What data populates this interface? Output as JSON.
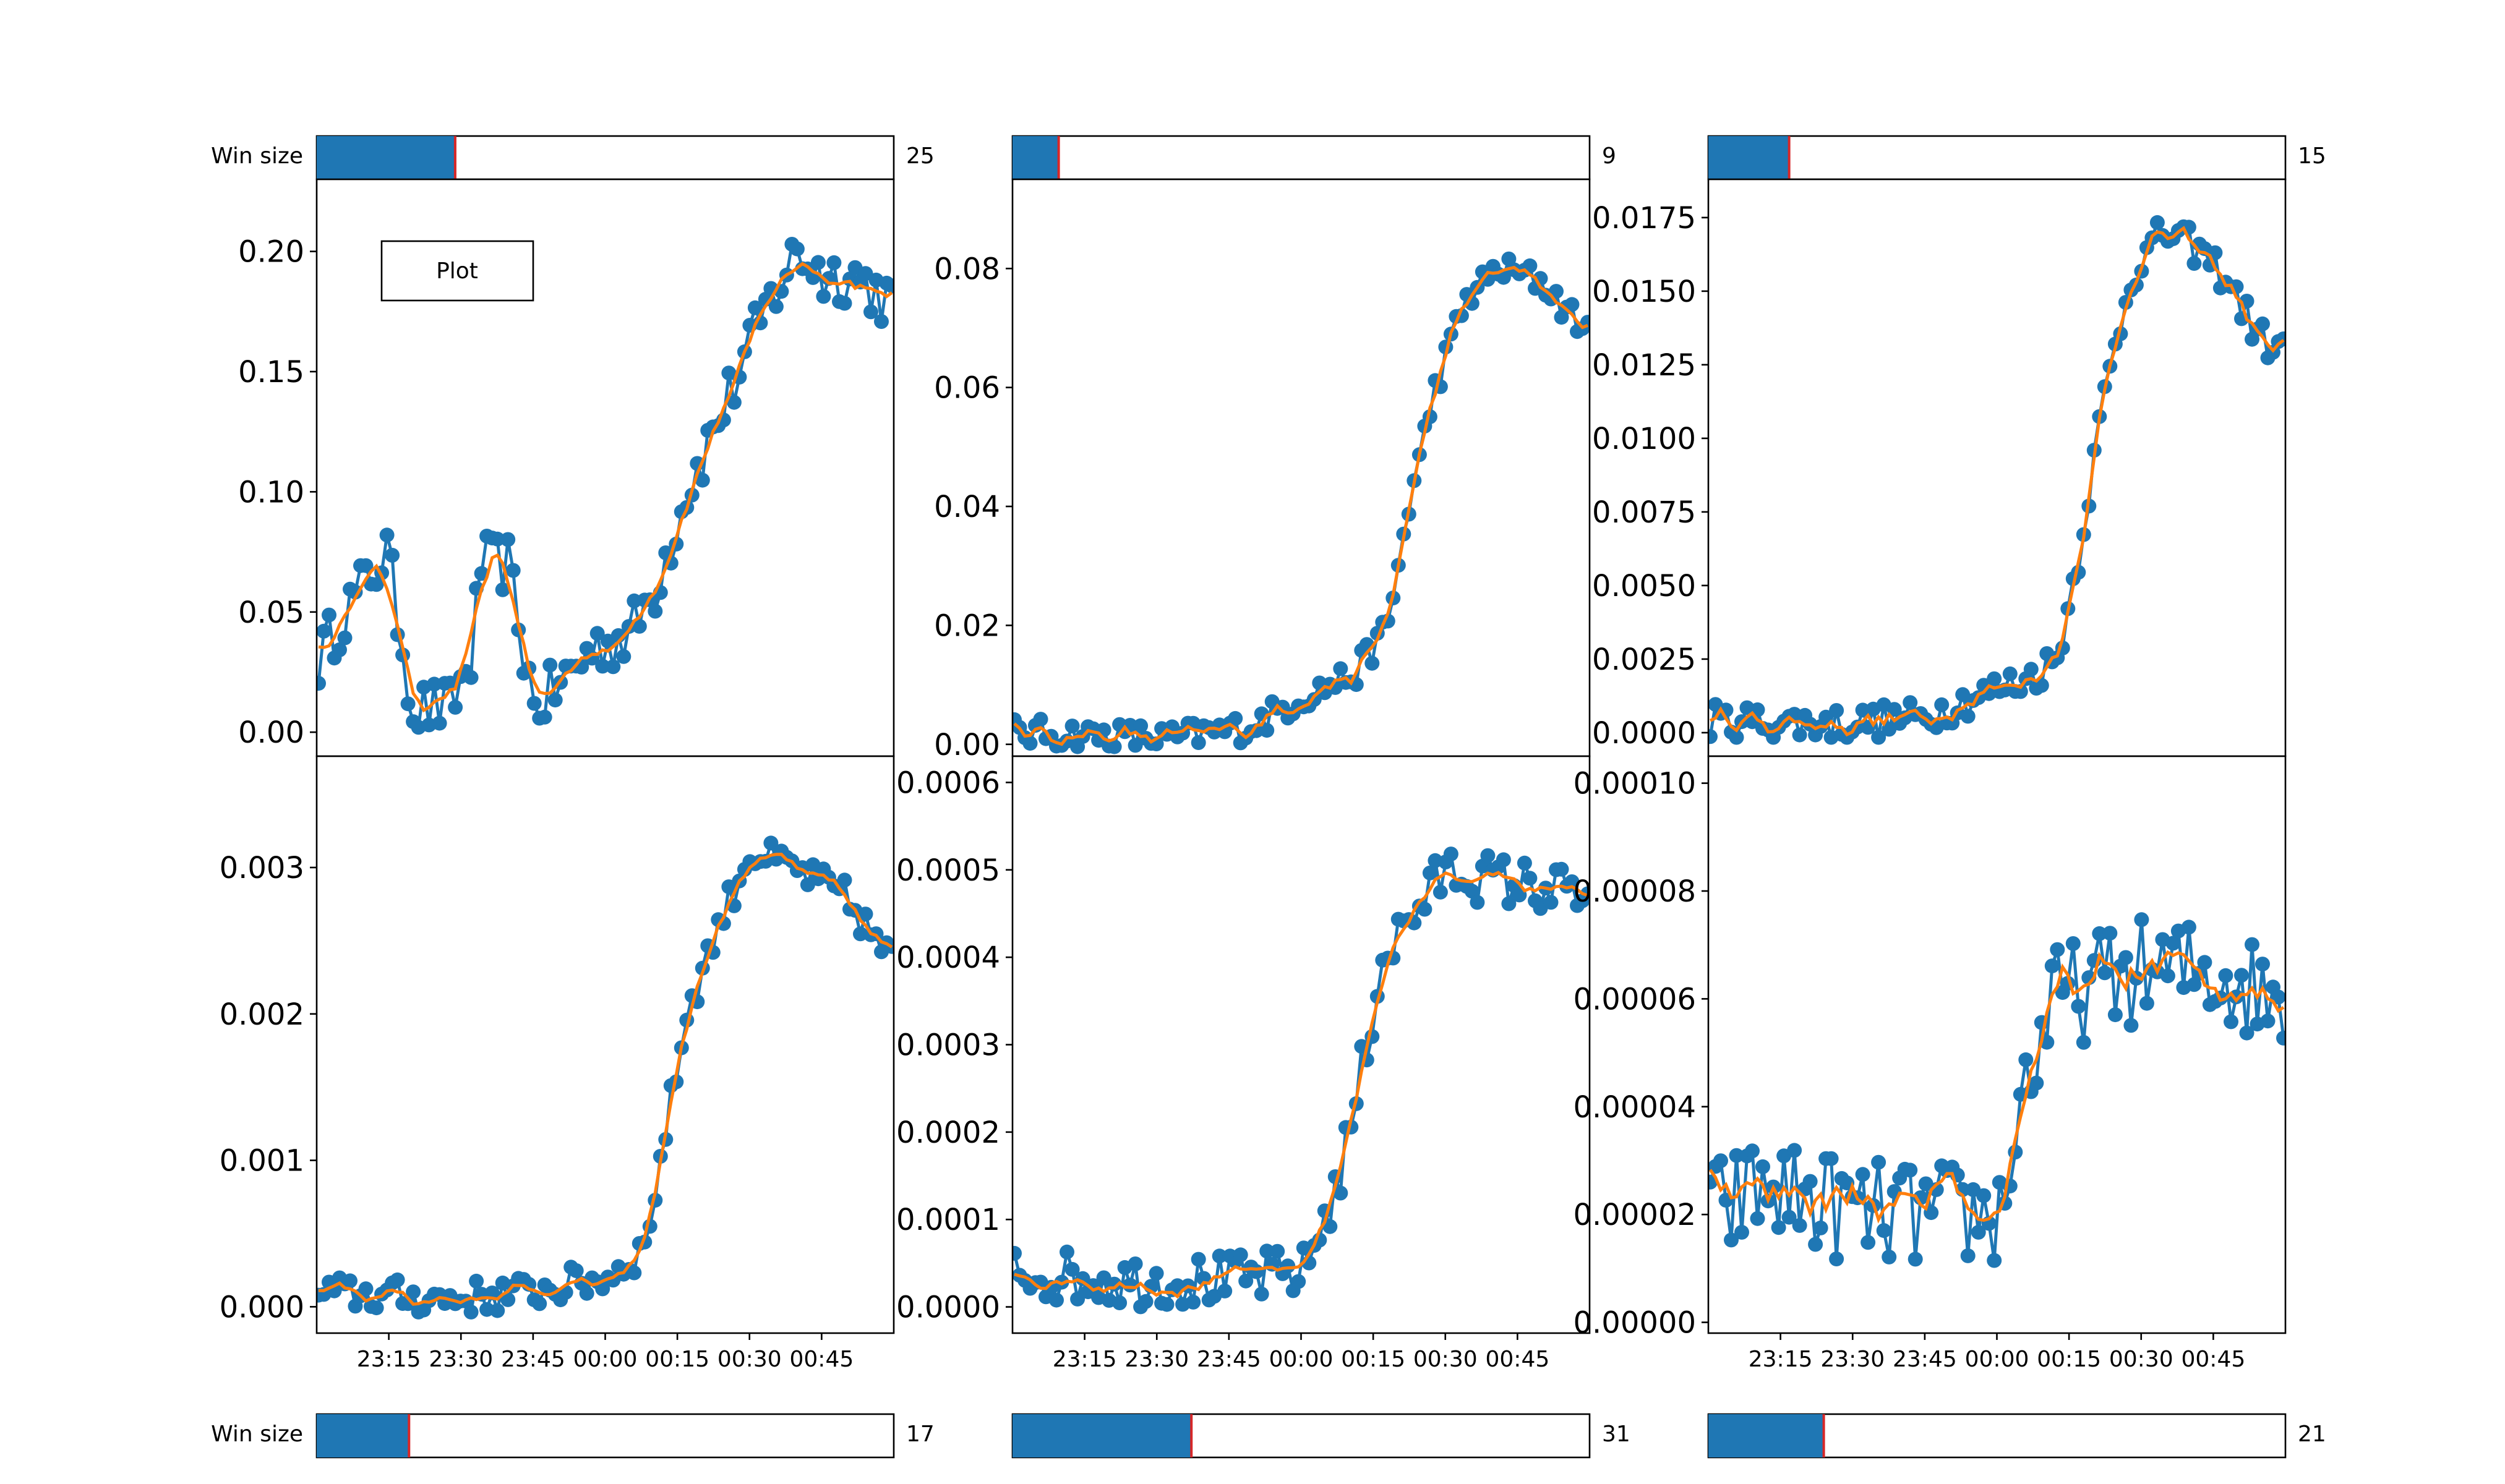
{
  "colors": {
    "series_raw": "#1f77b4",
    "series_smooth": "#ff7f0e",
    "slider_fill": "#1f77b4",
    "slider_marker": "#d62728",
    "frame": "#000000",
    "background": "#ffffff"
  },
  "plot_button": {
    "label": "Plot"
  },
  "sliders": {
    "top": [
      {
        "label": "Win size",
        "value": "25",
        "fraction": 0.24
      },
      {
        "label": "",
        "value": "9",
        "fraction": 0.08
      },
      {
        "label": "",
        "value": "15",
        "fraction": 0.14
      }
    ],
    "bottom": [
      {
        "label": "Win size",
        "value": "17",
        "fraction": 0.16
      },
      {
        "label": "",
        "value": "31",
        "fraction": 0.31
      },
      {
        "label": "",
        "value": "21",
        "fraction": 0.2
      }
    ]
  },
  "chart_data": [
    {
      "type": "line",
      "position": "top-left",
      "title": "",
      "xlabel": "",
      "ylabel": "",
      "ylim": [
        -0.01,
        0.23
      ],
      "yticks": [
        "0.00",
        "0.05",
        "0.10",
        "0.15",
        "0.20"
      ],
      "x_time_range": [
        "23:00",
        "01:00"
      ],
      "xtick_labels": [],
      "keyframes": [
        [
          0,
          0.03
        ],
        [
          5,
          0.05
        ],
        [
          13,
          0.075
        ],
        [
          18,
          0.01
        ],
        [
          25,
          0.01
        ],
        [
          29,
          0.03
        ],
        [
          31,
          0.07
        ],
        [
          36,
          0.07
        ],
        [
          41,
          0.01
        ],
        [
          46,
          0.02
        ],
        [
          52,
          0.035
        ],
        [
          59,
          0.04
        ],
        [
          64,
          0.06
        ],
        [
          70,
          0.1
        ],
        [
          80,
          0.15
        ],
        [
          86,
          0.18
        ],
        [
          91,
          0.2
        ],
        [
          96,
          0.19
        ],
        [
          102,
          0.19
        ],
        [
          108,
          0.18
        ]
      ],
      "noise": 0.012,
      "n": 110,
      "smooth_window": 25,
      "series": [
        {
          "name": "",
          "style": "markers-line",
          "color": "#1f77b4"
        },
        {
          "name": "",
          "style": "line",
          "color": "#ff7f0e"
        }
      ]
    },
    {
      "type": "line",
      "position": "top-middle",
      "title": "",
      "xlabel": "",
      "ylabel": "",
      "ylim": [
        -0.002,
        0.095
      ],
      "yticks": [
        "0.00",
        "0.02",
        "0.04",
        "0.06",
        "0.08"
      ],
      "x_time_range": [
        "23:00",
        "01:00"
      ],
      "xtick_labels": [],
      "keyframes": [
        [
          0,
          0.002
        ],
        [
          30,
          0.001
        ],
        [
          45,
          0.003
        ],
        [
          55,
          0.008
        ],
        [
          65,
          0.012
        ],
        [
          71,
          0.02
        ],
        [
          75,
          0.04
        ],
        [
          80,
          0.06
        ],
        [
          86,
          0.075
        ],
        [
          92,
          0.08
        ],
        [
          100,
          0.078
        ],
        [
          108,
          0.07
        ]
      ],
      "noise": 0.0025,
      "n": 110,
      "smooth_window": 9,
      "series": [
        {
          "name": "",
          "style": "markers-line",
          "color": "#1f77b4"
        },
        {
          "name": "",
          "style": "line",
          "color": "#ff7f0e"
        }
      ]
    },
    {
      "type": "line",
      "position": "top-right",
      "title": "",
      "xlabel": "",
      "ylabel": "",
      "ylim": [
        -0.0008,
        0.0188
      ],
      "yticks": [
        "0.0000",
        "0.0025",
        "0.0050",
        "0.0075",
        "0.0100",
        "0.0125",
        "0.0150",
        "0.0175"
      ],
      "x_time_range": [
        "23:00",
        "01:00"
      ],
      "xtick_labels": [],
      "keyframes": [
        [
          0,
          0.0004
        ],
        [
          25,
          0.0003
        ],
        [
          40,
          0.0005
        ],
        [
          50,
          0.0012
        ],
        [
          60,
          0.0018
        ],
        [
          66,
          0.0025
        ],
        [
          70,
          0.006
        ],
        [
          75,
          0.0115
        ],
        [
          80,
          0.0155
        ],
        [
          86,
          0.017
        ],
        [
          92,
          0.0165
        ],
        [
          98,
          0.0155
        ],
        [
          104,
          0.0135
        ],
        [
          108,
          0.013
        ]
      ],
      "noise": 0.0006,
      "n": 110,
      "smooth_window": 15,
      "series": [
        {
          "name": "",
          "style": "markers-line",
          "color": "#1f77b4"
        },
        {
          "name": "",
          "style": "line",
          "color": "#ff7f0e"
        }
      ]
    },
    {
      "type": "line",
      "position": "bottom-left",
      "title": "",
      "xlabel": "",
      "ylabel": "",
      "ylim": [
        -0.00018,
        0.00376
      ],
      "yticks": [
        "0.000",
        "0.001",
        "0.002",
        "0.003"
      ],
      "x_time_range": [
        "23:00",
        "01:00"
      ],
      "xtick_labels": [
        "23:15",
        "23:30",
        "23:45",
        "00:00",
        "00:15",
        "00:30",
        "00:45"
      ],
      "keyframes": [
        [
          0,
          0.0001
        ],
        [
          25,
          5e-05
        ],
        [
          40,
          0.0001
        ],
        [
          55,
          0.0002
        ],
        [
          62,
          0.0004
        ],
        [
          66,
          0.0012
        ],
        [
          70,
          0.002
        ],
        [
          76,
          0.0026
        ],
        [
          82,
          0.0031
        ],
        [
          90,
          0.003
        ],
        [
          100,
          0.0028
        ],
        [
          108,
          0.0024
        ]
      ],
      "noise": 0.00012,
      "n": 110,
      "smooth_window": 17,
      "series": [
        {
          "name": "",
          "style": "markers-line",
          "color": "#1f77b4"
        },
        {
          "name": "",
          "style": "line",
          "color": "#ff7f0e"
        }
      ]
    },
    {
      "type": "line",
      "position": "bottom-middle",
      "title": "",
      "xlabel": "",
      "ylabel": "",
      "ylim": [
        -3e-05,
        0.00063
      ],
      "yticks": [
        "0.0000",
        "0.0001",
        "0.0002",
        "0.0003",
        "0.0004",
        "0.0005",
        "0.0006"
      ],
      "x_time_range": [
        "23:00",
        "01:00"
      ],
      "xtick_labels": [
        "23:15",
        "23:30",
        "23:45",
        "00:00",
        "00:15",
        "00:30",
        "00:45"
      ],
      "keyframes": [
        [
          0,
          4e-05
        ],
        [
          20,
          3e-05
        ],
        [
          40,
          3e-05
        ],
        [
          55,
          4e-05
        ],
        [
          62,
          0.00015
        ],
        [
          67,
          0.0003
        ],
        [
          70,
          0.0004
        ],
        [
          76,
          0.00045
        ],
        [
          82,
          0.0005
        ],
        [
          90,
          0.00049
        ],
        [
          100,
          0.00048
        ],
        [
          108,
          0.00047
        ]
      ],
      "noise": 3e-05,
      "n": 110,
      "smooth_window": 31,
      "series": [
        {
          "name": "",
          "style": "markers-line",
          "color": "#1f77b4"
        },
        {
          "name": "",
          "style": "line",
          "color": "#ff7f0e"
        }
      ]
    },
    {
      "type": "line",
      "position": "bottom-right",
      "title": "",
      "xlabel": "",
      "ylabel": "",
      "ylim": [
        -2e-06,
        0.000105
      ],
      "yticks": [
        "0.00000",
        "0.00002",
        "0.00004",
        "0.00006",
        "0.00008",
        "0.00010"
      ],
      "x_time_range": [
        "23:00",
        "01:00"
      ],
      "xtick_labels": [
        "23:15",
        "23:30",
        "23:45",
        "00:00",
        "00:15",
        "00:30",
        "00:45"
      ],
      "keyframes": [
        [
          0,
          2e-05
        ],
        [
          10,
          2.5e-05
        ],
        [
          30,
          2e-05
        ],
        [
          55,
          2e-05
        ],
        [
          60,
          4.5e-05
        ],
        [
          66,
          6e-05
        ],
        [
          80,
          6.5e-05
        ],
        [
          95,
          6.5e-05
        ],
        [
          108,
          6e-05
        ]
      ],
      "noise": 1e-05,
      "n": 110,
      "smooth_window": 21,
      "series": [
        {
          "name": "",
          "style": "markers-line",
          "color": "#1f77b4"
        },
        {
          "name": "",
          "style": "line",
          "color": "#ff7f0e"
        }
      ]
    }
  ]
}
